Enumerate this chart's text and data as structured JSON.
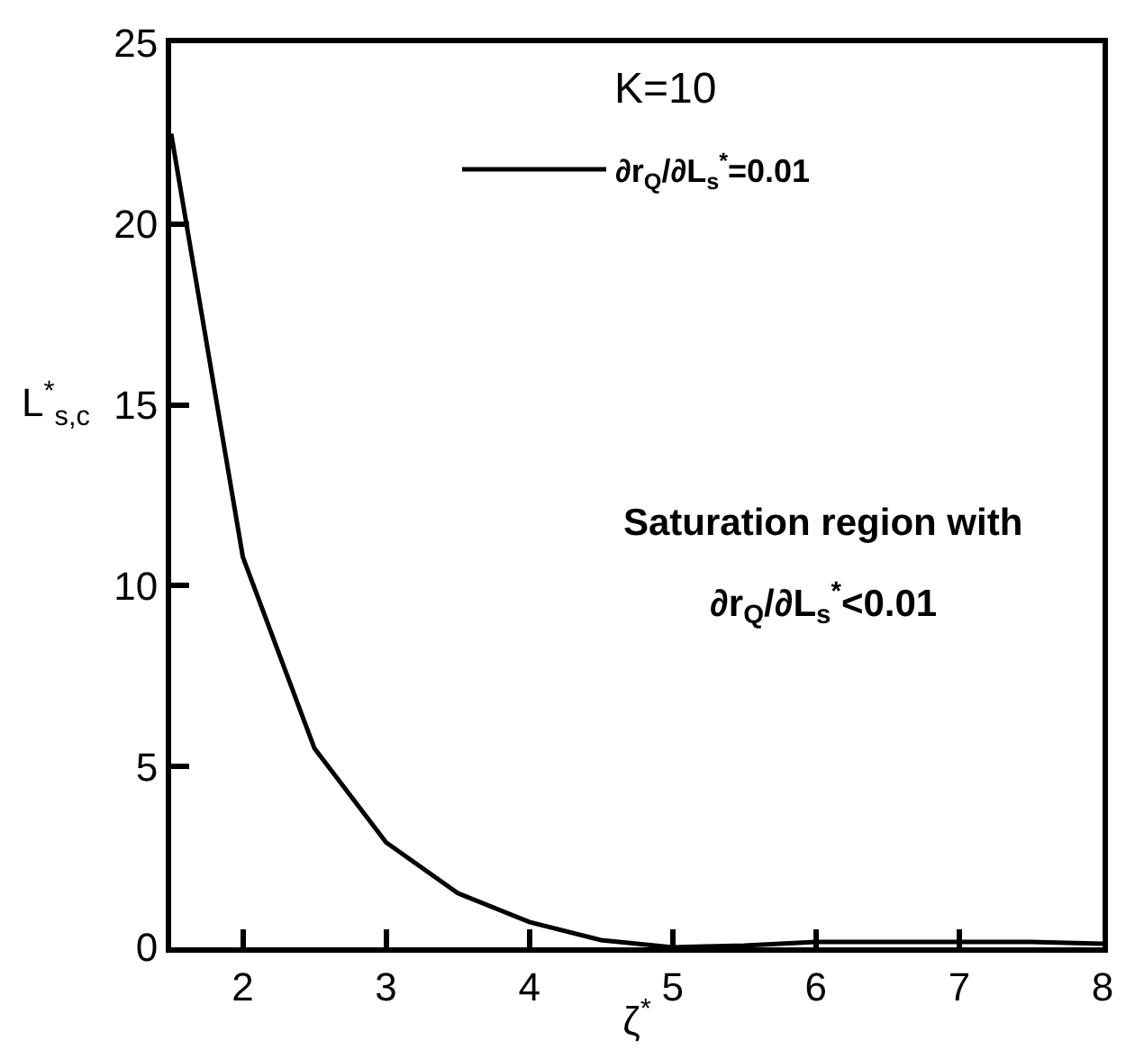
{
  "chart_data": {
    "type": "line",
    "xlabel": "ζ$^{*}$",
    "ylabel": "L$^{*}$$_{s,c}$",
    "annotations": [
      "K=10",
      "Saturation region with",
      "∂r$_{Q}$/∂L$_{s}$$^{*}$<0.01"
    ],
    "x": [
      1.5,
      2,
      2.5,
      3,
      3.5,
      4,
      4.5,
      5,
      5.5,
      6,
      6.5,
      7,
      7.5,
      8
    ],
    "series": [
      {
        "name": "∂r$_{Q}$/∂L$_{s}$$^{*}$=0.01",
        "color": "#000000",
        "values": [
          22.5,
          10.8,
          5.5,
          2.9,
          1.5,
          0.7,
          0.2,
          0,
          0.05,
          0.15,
          0.15,
          0.15,
          0.15,
          0.1
        ]
      }
    ],
    "xlim": [
      1.5,
      8
    ],
    "xticks": [
      2,
      3,
      4,
      5,
      6,
      7,
      8
    ],
    "ylim": [
      0,
      25
    ],
    "yticks": [
      0,
      5,
      10,
      15,
      20,
      25
    ],
    "grid": false,
    "legend": "top",
    "marker": "none",
    "line_style": "solid"
  }
}
